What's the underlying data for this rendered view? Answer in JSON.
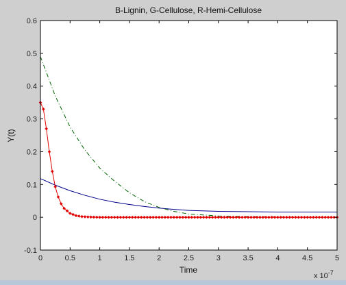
{
  "chart_data": {
    "type": "line",
    "title": "B-Lignin, G-Cellulose, R-Hemi-Cellulose",
    "xlabel": "Time",
    "ylabel": "Y(t)",
    "x_exponent_label": "x 10",
    "x_exponent_power": "-7",
    "xlim": [
      0,
      5
    ],
    "ylim": [
      -0.1,
      0.6
    ],
    "x_ticks": [
      "0",
      "0.5",
      "1",
      "1.5",
      "2",
      "2.5",
      "3",
      "3.5",
      "4",
      "4.5",
      "5"
    ],
    "y_ticks": [
      "-0.1",
      "0",
      "0.1",
      "0.2",
      "0.3",
      "0.4",
      "0.5",
      "0.6"
    ],
    "grid": false,
    "series": [
      {
        "key": "lignin",
        "color": "#00008b",
        "style": "solid",
        "x": [
          0,
          0.25,
          0.5,
          0.75,
          1.0,
          1.25,
          1.5,
          1.75,
          2.0,
          2.25,
          2.5,
          3.0,
          3.5,
          4.0,
          4.5,
          5.0
        ],
        "y": [
          0.118,
          0.098,
          0.081,
          0.067,
          0.055,
          0.046,
          0.039,
          0.033,
          0.028,
          0.024,
          0.021,
          0.018,
          0.017,
          0.016,
          0.016,
          0.016
        ]
      },
      {
        "key": "cellulose",
        "color": "#006400",
        "style": "dashdot",
        "x": [
          0,
          0.25,
          0.5,
          0.75,
          1.0,
          1.25,
          1.5,
          1.75,
          2.0,
          2.25,
          2.5,
          3.0,
          3.5,
          4.0,
          4.5,
          5.0
        ],
        "y": [
          0.49,
          0.37,
          0.275,
          0.205,
          0.15,
          0.11,
          0.075,
          0.048,
          0.03,
          0.018,
          0.01,
          0.004,
          0.002,
          0.001,
          0.0,
          0.0
        ]
      },
      {
        "key": "hemicellulose",
        "color": "#e00000",
        "style": "markers",
        "x": [
          0,
          0.05,
          0.1,
          0.15,
          0.2,
          0.25,
          0.3,
          0.35,
          0.4,
          0.5,
          0.6,
          0.7,
          0.8,
          1.0,
          1.5,
          2.0,
          2.5,
          3.0,
          3.5,
          4.0,
          4.5,
          5.0
        ],
        "y": [
          0.35,
          0.33,
          0.27,
          0.2,
          0.14,
          0.093,
          0.062,
          0.041,
          0.027,
          0.012,
          0.005,
          0.002,
          0.001,
          0.0,
          0.0,
          0.0,
          0.0,
          0.0,
          0.0,
          0.0,
          0.0,
          0.0
        ]
      }
    ]
  }
}
